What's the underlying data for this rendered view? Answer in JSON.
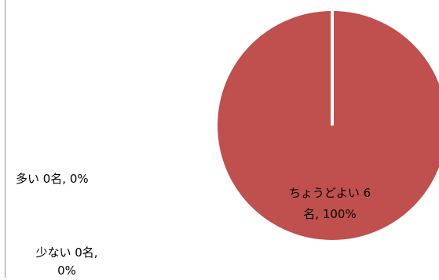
{
  "chart_data": {
    "type": "pie",
    "title": "",
    "slices": [
      {
        "label": "多い",
        "count_text": "0名",
        "value": 0,
        "percent": "0%",
        "color": "#C0504D"
      },
      {
        "label": "少ない",
        "count_text": "0名",
        "value": 0,
        "percent": "0%",
        "color": "#C0504D"
      },
      {
        "label": "ちょうどよい",
        "count_text": "6名",
        "value": 6,
        "percent": "100%",
        "color": "#C0504D"
      }
    ],
    "data_labels": {
      "oi": "多い 0名, 0%",
      "sukunai_line1": "少ない 0名,",
      "sukunai_line2": "0%",
      "choudoyoi_line1": "ちょうどよい 6",
      "choudoyoi_line2": "名, 100%"
    },
    "slice_border_color": "#FFFFFF"
  }
}
